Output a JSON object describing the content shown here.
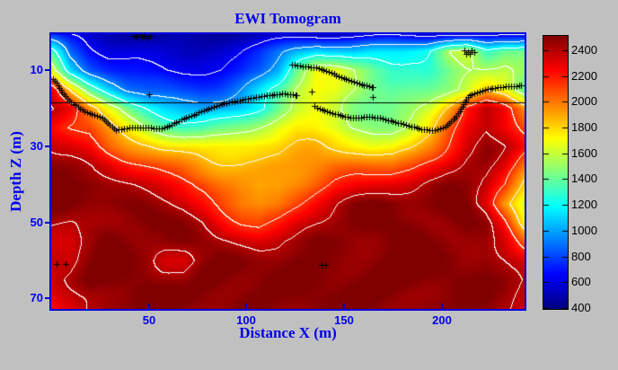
{
  "figure": {
    "background": "#c0c0c0"
  },
  "title": {
    "text": "EWI Tomogram",
    "color": "#0000ee"
  },
  "axes": {
    "x_label": "Distance X (m)",
    "y_label": "Depth Z (m)",
    "frame_color": "#0000dd",
    "tick_label_color": "#0000ee",
    "x_ticks": [
      50,
      100,
      150,
      200
    ],
    "y_ticks": [
      10,
      30,
      50,
      70
    ]
  },
  "colorbar": {
    "tick_values": [
      2400,
      2200,
      2000,
      1800,
      1600,
      1400,
      1200,
      1000,
      800,
      600,
      400
    ],
    "label_color": "#000000",
    "border_color": "#000000"
  },
  "chart_data": {
    "type": "heatmap",
    "title": "EWI Tomogram",
    "xlabel": "Distance X (m)",
    "ylabel": "Depth Z (m)",
    "colormap": "jet",
    "x_range": [
      0,
      242
    ],
    "depth_range": [
      0.5,
      72.5
    ],
    "color_range": [
      400,
      2510
    ],
    "colorbar_ticks": [
      400,
      600,
      800,
      1000,
      1200,
      1400,
      1600,
      1800,
      2000,
      2200,
      2400
    ],
    "contour_levels": [
      650,
      950,
      1250,
      1550,
      1850,
      2150,
      2400
    ],
    "contour_color": "#ffffff",
    "horizon_line_depth_m": 18.5,
    "grid": {
      "x_min": 0,
      "x_max": 242,
      "depth_min": 0,
      "depth_max": 75,
      "cols": 26,
      "rows": 16,
      "values": [
        [
          700,
          580,
          500,
          470,
          460,
          465,
          475,
          485,
          470,
          450,
          440,
          450,
          470,
          490,
          510,
          530,
          550,
          540,
          520,
          510,
          500,
          490,
          480,
          500,
          530,
          570
        ],
        [
          1300,
          850,
          700,
          620,
          580,
          560,
          550,
          540,
          540,
          560,
          620,
          720,
          880,
          1050,
          1150,
          1100,
          1050,
          1100,
          1150,
          1200,
          1250,
          1500,
          1600,
          1300,
          1450,
          1450
        ],
        [
          1650,
          1150,
          900,
          780,
          700,
          640,
          620,
          610,
          630,
          670,
          730,
          850,
          1050,
          1450,
          1700,
          1650,
          1500,
          1400,
          1350,
          1350,
          1300,
          1400,
          1500,
          1550,
          1600,
          1500
        ],
        [
          2300,
          1800,
          1400,
          1150,
          950,
          850,
          800,
          780,
          800,
          860,
          960,
          1120,
          1320,
          1600,
          1750,
          1700,
          1550,
          1420,
          1380,
          1420,
          1450,
          1500,
          1600,
          1800,
          1700,
          1450
        ],
        [
          2450,
          2250,
          1900,
          1650,
          1450,
          1300,
          1150,
          1050,
          1000,
          1030,
          1100,
          1200,
          1380,
          1580,
          1700,
          1650,
          1500,
          1420,
          1380,
          1450,
          1600,
          1900,
          2250,
          2400,
          2250,
          1950
        ],
        [
          2250,
          2150,
          2100,
          1900,
          1700,
          1550,
          1420,
          1320,
          1300,
          1370,
          1470,
          1570,
          1670,
          1720,
          1700,
          1650,
          1550,
          1480,
          1450,
          1550,
          1750,
          2050,
          2300,
          2400,
          2250,
          2050
        ],
        [
          2400,
          2350,
          2250,
          2050,
          1950,
          1880,
          1780,
          1720,
          1700,
          1750,
          1800,
          1820,
          1820,
          1850,
          1850,
          1800,
          1750,
          1700,
          1720,
          1820,
          1980,
          2180,
          2350,
          2450,
          2350,
          2200
        ],
        [
          2500,
          2450,
          2400,
          2350,
          2250,
          2150,
          2050,
          2000,
          1950,
          1900,
          1870,
          1870,
          1900,
          1950,
          2000,
          2050,
          2050,
          2020,
          2020,
          2120,
          2250,
          2350,
          2420,
          2420,
          2300,
          2050
        ],
        [
          2500,
          2500,
          2500,
          2450,
          2400,
          2350,
          2300,
          2250,
          2150,
          2000,
          1900,
          1850,
          1900,
          2000,
          2100,
          2200,
          2250,
          2270,
          2300,
          2350,
          2420,
          2470,
          2470,
          2400,
          2200,
          1850
        ],
        [
          2500,
          2500,
          2500,
          2500,
          2480,
          2450,
          2400,
          2350,
          2250,
          2100,
          1970,
          1920,
          1970,
          2120,
          2270,
          2380,
          2460,
          2500,
          2500,
          2500,
          2500,
          2500,
          2460,
          2300,
          1950,
          1650
        ],
        [
          2420,
          2380,
          2420,
          2470,
          2500,
          2500,
          2480,
          2440,
          2380,
          2280,
          2180,
          2120,
          2180,
          2280,
          2380,
          2460,
          2500,
          2500,
          2500,
          2500,
          2500,
          2500,
          2500,
          2420,
          2150,
          1750
        ],
        [
          2400,
          2350,
          2420,
          2500,
          2500,
          2500,
          2500,
          2500,
          2460,
          2420,
          2380,
          2350,
          2400,
          2450,
          2500,
          2500,
          2500,
          2500,
          2500,
          2500,
          2500,
          2500,
          2500,
          2460,
          2300,
          2050
        ],
        [
          2400,
          2350,
          2450,
          2500,
          2500,
          2500,
          2380,
          2340,
          2450,
          2500,
          2500,
          2480,
          2460,
          2500,
          2500,
          2500,
          2500,
          2500,
          2500,
          2500,
          2500,
          2500,
          2500,
          2500,
          2400,
          2300
        ],
        [
          2330,
          2400,
          2500,
          2500,
          2500,
          2500,
          2450,
          2420,
          2500,
          2500,
          2500,
          2500,
          2500,
          2500,
          2500,
          2500,
          2500,
          2500,
          2500,
          2500,
          2500,
          2500,
          2500,
          2500,
          2450,
          2380
        ],
        [
          2250,
          2350,
          2450,
          2500,
          2500,
          2500,
          2500,
          2500,
          2500,
          2500,
          2500,
          2500,
          2500,
          2500,
          2500,
          2500,
          2500,
          2500,
          2500,
          2500,
          2500,
          2480,
          2480,
          2480,
          2440,
          2380
        ],
        [
          2200,
          2300,
          2450,
          2500,
          2500,
          2500,
          2500,
          2500,
          2500,
          2500,
          2500,
          2500,
          2500,
          2500,
          2500,
          2500,
          2500,
          2500,
          2500,
          2500,
          2500,
          2480,
          2480,
          2480,
          2440,
          2380
        ]
      ]
    },
    "markers": {
      "symbol": "+",
      "color": "#000000",
      "chain_spacing_px": 3,
      "chains": [
        {
          "name": "pick-horizon-left",
          "path": [
            [
              0.9,
              12.3
            ],
            [
              2.8,
              13.4
            ],
            [
              4.6,
              14.9
            ],
            [
              6.4,
              16.3
            ],
            [
              8.7,
              17.7
            ],
            [
              11.9,
              19.1
            ],
            [
              15.6,
              20.3
            ],
            [
              20.2,
              21.5
            ],
            [
              25.7,
              22.2
            ],
            [
              29.4,
              24.1
            ],
            [
              33,
              25.7
            ],
            [
              38.5,
              25.2
            ],
            [
              43,
              25.0
            ],
            [
              47.7,
              25.0
            ],
            [
              52.3,
              25.2
            ],
            [
              56.9,
              25.3
            ],
            [
              60.4,
              24.6
            ],
            [
              63.8,
              23.6
            ],
            [
              70.6,
              22.2
            ],
            [
              77.5,
              20.7
            ],
            [
              84.4,
              19.3
            ],
            [
              91.3,
              18.4
            ],
            [
              98.2,
              17.7
            ],
            [
              105.0,
              17.0
            ],
            [
              111.9,
              16.5
            ],
            [
              118.8,
              16.1
            ],
            [
              125.7,
              16.5
            ]
          ]
        },
        {
          "name": "pick-horizon-upper-mid",
          "path": [
            [
              123.4,
              8.5
            ],
            [
              130.3,
              9.0
            ],
            [
              137.2,
              9.4
            ],
            [
              141.7,
              10.4
            ],
            [
              146.3,
              11.3
            ],
            [
              150.9,
              12.3
            ],
            [
              155.5,
              13.2
            ],
            [
              160.1,
              13.9
            ],
            [
              164.7,
              14.4
            ]
          ]
        },
        {
          "name": "pick-horizon-right",
          "path": [
            [
              134.9,
              19.5
            ],
            [
              141.7,
              20.9
            ],
            [
              148.6,
              21.9
            ],
            [
              155.5,
              22.6
            ],
            [
              162.4,
              22.2
            ],
            [
              169.3,
              22.6
            ],
            [
              176.1,
              23.6
            ],
            [
              183.0,
              24.5
            ],
            [
              189.9,
              25.5
            ],
            [
              196.8,
              25.8
            ],
            [
              201.4,
              25.0
            ],
            [
              205.9,
              23.1
            ],
            [
              209.2,
              20.7
            ],
            [
              211.9,
              18.4
            ],
            [
              214.2,
              16.5
            ],
            [
              218.8,
              15.6
            ],
            [
              224.3,
              14.9
            ],
            [
              229.8,
              14.4
            ],
            [
              235.8,
              14.2
            ],
            [
              240.8,
              14.0
            ]
          ]
        }
      ],
      "cluster_points": [
        [
          211.5,
          4.8
        ],
        [
          213.5,
          5.2
        ],
        [
          215.5,
          4.7
        ],
        [
          212.5,
          5.6
        ],
        [
          214.5,
          5.8
        ],
        [
          216.5,
          5.3
        ]
      ],
      "isolated_points": [
        [
          133.5,
          15.6
        ],
        [
          164.7,
          17.0
        ],
        [
          50.0,
          16.3
        ]
      ],
      "deep_points": [
        [
          2.8,
          60.9
        ],
        [
          7.3,
          60.9
        ],
        [
          138.5,
          61.1
        ],
        [
          140.4,
          61.1
        ]
      ],
      "surface_points": [
        [
          42.2,
          0.9
        ],
        [
          43.6,
          1.3
        ],
        [
          45.0,
          0.8
        ],
        [
          46.4,
          1.2
        ],
        [
          47.8,
          0.9
        ],
        [
          49.2,
          1.4
        ],
        [
          50.6,
          1.0
        ]
      ]
    }
  }
}
